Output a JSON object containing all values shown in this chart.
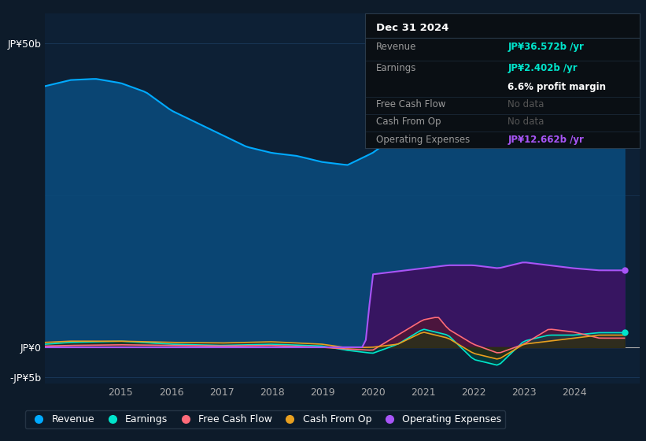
{
  "bg_color": "#0d1b2a",
  "plot_bg_color": "#0d2035",
  "grid_color": "#1a3a5c",
  "ylabel_top": "JP¥50b",
  "ylabel_zero": "JP¥0",
  "ylabel_neg": "-JP¥5b",
  "x_ticks": [
    2015,
    2016,
    2017,
    2018,
    2019,
    2020,
    2021,
    2022,
    2023,
    2024
  ],
  "ylim_min": -6,
  "ylim_max": 55,
  "info_box": {
    "date": "Dec 31 2024",
    "revenue_label": "Revenue",
    "revenue_value": "JP¥36.572b /yr",
    "earnings_label": "Earnings",
    "earnings_value": "JP¥2.402b /yr",
    "margin_text": "6.6% profit margin",
    "fcf_label": "Free Cash Flow",
    "fcf_value": "No data",
    "cfo_label": "Cash From Op",
    "cfo_value": "No data",
    "opex_label": "Operating Expenses",
    "opex_value": "JP¥12.662b /yr"
  },
  "legend": [
    {
      "label": "Revenue",
      "color": "#00aaff"
    },
    {
      "label": "Earnings",
      "color": "#00e5cc"
    },
    {
      "label": "Free Cash Flow",
      "color": "#ff6b7a"
    },
    {
      "label": "Cash From Op",
      "color": "#e8a020"
    },
    {
      "label": "Operating Expenses",
      "color": "#a855f7"
    }
  ],
  "revenue_color": "#00aaff",
  "revenue_fill": "#0a4a7a",
  "earnings_color": "#00e5cc",
  "earnings_fill": "#005040",
  "fcf_color": "#ff6b7a",
  "fcf_fill": "#5a1525",
  "cashfromop_color": "#e8a020",
  "cashfromop_fill": "#3a2800",
  "opex_color": "#a855f7",
  "opex_fill": "#3d1060"
}
